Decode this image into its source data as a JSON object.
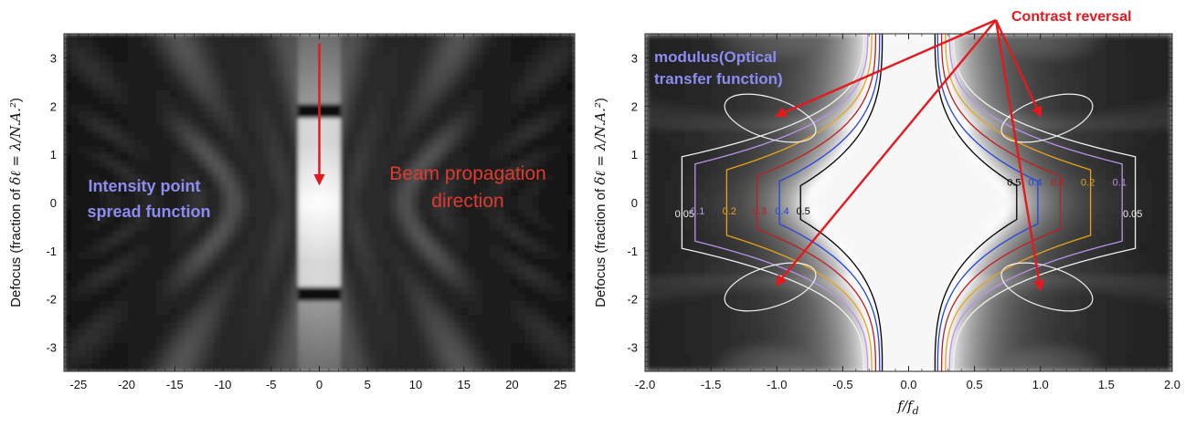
{
  "chart_data": [
    {
      "type": "heatmap",
      "title": "",
      "colormap": "grayscale",
      "xlabel": "",
      "ylabel_prefix": "Defocus (fraction of ",
      "ylabel_math": "δℓ = λ/N.A.²",
      "ylabel_suffix": ")",
      "xlim": [
        -26.5,
        26.5
      ],
      "ylim": [
        -3.5,
        3.5
      ],
      "xticks": [
        -25,
        -20,
        -15,
        -10,
        -5,
        0,
        5,
        10,
        15,
        20,
        25
      ],
      "yticks": [
        -3,
        -2,
        -1,
        0,
        1,
        2,
        3
      ],
      "annotations": {
        "psf_label": [
          "Intensity point",
          "spread function"
        ],
        "beam_label": [
          "Beam propagation",
          "direction"
        ]
      },
      "arrow": {
        "from": [
          0,
          3.3
        ],
        "to": [
          0,
          0.4
        ]
      }
    },
    {
      "type": "heatmap",
      "title": "",
      "colormap": "grayscale",
      "xlabel": "f/f",
      "xlabel_sub": "d",
      "ylabel_prefix": "Defocus (fraction of ",
      "ylabel_math": "δℓ = λ/N.A.²",
      "ylabel_suffix": ")",
      "xlim": [
        -2.0,
        2.0
      ],
      "ylim": [
        -3.5,
        3.5
      ],
      "xticks": [
        "-2.0",
        "-1.5",
        "-1.0",
        "-0.5",
        "0.0",
        "0.5",
        "1.0",
        "1.5",
        "2.0"
      ],
      "yticks": [
        -3,
        -2,
        -1,
        0,
        1,
        2,
        3
      ],
      "contour_levels": [
        {
          "level": "0.05",
          "color": "#f2f2f2"
        },
        {
          "level": "0.1",
          "color": "#b994e6"
        },
        {
          "level": "0.2",
          "color": "#e8a21a"
        },
        {
          "level": "0.3",
          "color": "#c01d1d"
        },
        {
          "level": "0.4",
          "color": "#2244dd"
        },
        {
          "level": "0.5",
          "color": "#000000"
        }
      ],
      "annotations": {
        "mtf_label": [
          "modulus(Optical",
          "transfer function)"
        ],
        "contrast_label": "Contrast reversal"
      },
      "contrast_reversal_targets": [
        [
          -1.0,
          1.8
        ],
        [
          1.0,
          1.8
        ],
        [
          -1.0,
          -1.7
        ],
        [
          1.0,
          -1.8
        ]
      ]
    }
  ],
  "colors": {
    "annotation_blue": "#8c8cf2",
    "annotation_red": "#e03a2e",
    "arrow_red": "#e5191d"
  }
}
